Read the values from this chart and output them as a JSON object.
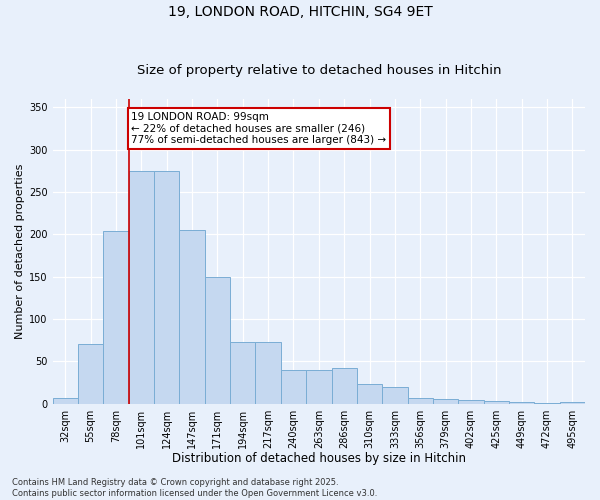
{
  "title": "19, LONDON ROAD, HITCHIN, SG4 9ET",
  "subtitle": "Size of property relative to detached houses in Hitchin",
  "xlabel": "Distribution of detached houses by size in Hitchin",
  "ylabel": "Number of detached properties",
  "categories": [
    "32sqm",
    "55sqm",
    "78sqm",
    "101sqm",
    "124sqm",
    "147sqm",
    "171sqm",
    "194sqm",
    "217sqm",
    "240sqm",
    "263sqm",
    "286sqm",
    "310sqm",
    "333sqm",
    "356sqm",
    "379sqm",
    "402sqm",
    "425sqm",
    "449sqm",
    "472sqm",
    "495sqm"
  ],
  "values": [
    7,
    70,
    204,
    275,
    275,
    205,
    150,
    73,
    73,
    40,
    40,
    42,
    23,
    20,
    7,
    6,
    4,
    3,
    2,
    1,
    2
  ],
  "bar_color": "#c5d8f0",
  "bar_edge_color": "#7aadd4",
  "vline_idx": 3,
  "vline_color": "#cc0000",
  "annotation_text": "19 LONDON ROAD: 99sqm\n← 22% of detached houses are smaller (246)\n77% of semi-detached houses are larger (843) →",
  "annotation_box_color": "#ffffff",
  "annotation_box_edge": "#cc0000",
  "ylim": [
    0,
    360
  ],
  "yticks": [
    0,
    50,
    100,
    150,
    200,
    250,
    300,
    350
  ],
  "bg_color": "#e8f0fb",
  "grid_color": "#ffffff",
  "footer": "Contains HM Land Registry data © Crown copyright and database right 2025.\nContains public sector information licensed under the Open Government Licence v3.0.",
  "title_fontsize": 10,
  "subtitle_fontsize": 9.5,
  "xlabel_fontsize": 8.5,
  "ylabel_fontsize": 8,
  "tick_fontsize": 7,
  "footer_fontsize": 6,
  "annotation_fontsize": 7.5
}
